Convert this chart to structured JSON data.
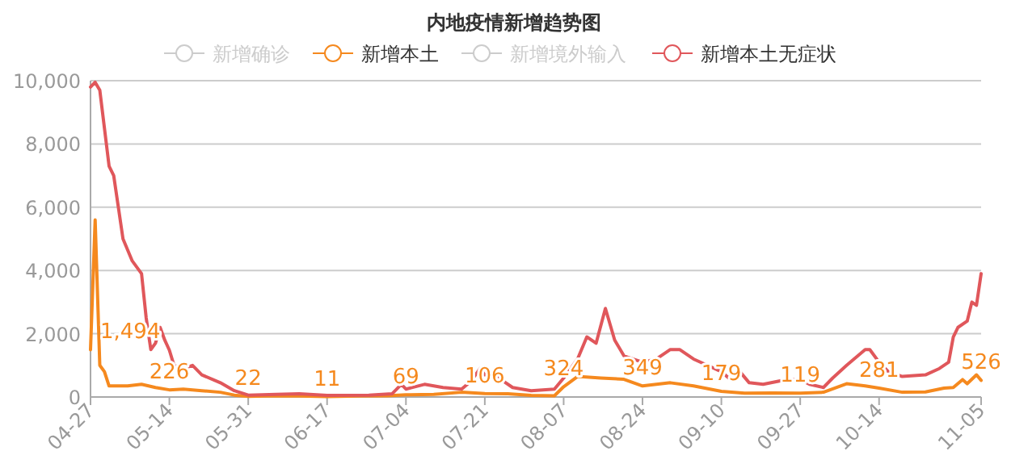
{
  "chart_data": {
    "type": "line",
    "title": "内地疫情新增趋势图",
    "xlim": [
      "--04-27",
      "--11-05"
    ],
    "xticks": [
      {
        "value": "--04-27",
        "label": "04-27"
      },
      {
        "value": "--05-14",
        "label": "05-14"
      },
      {
        "value": "--05-31",
        "label": "05-31"
      },
      {
        "value": "--06-17",
        "label": "06-17"
      },
      {
        "value": "--07-04",
        "label": "07-04"
      },
      {
        "value": "--07-21",
        "label": "07-21"
      },
      {
        "value": "--08-07",
        "label": "08-07"
      },
      {
        "value": "--08-24",
        "label": "08-24"
      },
      {
        "value": "--09-10",
        "label": "09-10"
      },
      {
        "value": "--09-27",
        "label": "09-27"
      },
      {
        "value": "--10-14",
        "label": "10-14"
      },
      {
        "value": "--11-05",
        "label": "11-05"
      }
    ],
    "ylim": [
      0,
      10000
    ],
    "yticks": [
      0,
      {
        "value": 2000,
        "label": "2,000"
      },
      {
        "value": 4000,
        "label": "4,000"
      },
      {
        "value": 6000,
        "label": "6,000"
      },
      {
        "value": 8000,
        "label": "8,000"
      },
      {
        "value": 10000,
        "label": "10,000"
      }
    ],
    "grid": "y",
    "legend": "top",
    "series": [
      {
        "name": "新增确诊",
        "color": "#cccccc"
      },
      {
        "name": "新增本土",
        "color": "#f5891e",
        "x": [
          "--04-27",
          "--04-28",
          "--04-29",
          "--04-30",
          "--05-01",
          "--05-05",
          "--05-08",
          "--05-11",
          "--05-14",
          "--05-17",
          "--05-21",
          "--05-25",
          "--05-28",
          "--05-31",
          "--06-06",
          "--06-11",
          "--06-17",
          "--06-24",
          "--06-30",
          "--07-04",
          "--07-10",
          "--07-16",
          "--07-21",
          "--07-26",
          "--07-31",
          "--08-05",
          "--08-07",
          "--08-10",
          "--08-15",
          "--08-20",
          "--08-24",
          "--08-30",
          "--09-04",
          "--09-10",
          "--09-15",
          "--09-21",
          "--09-27",
          "--10-02",
          "--10-07",
          "--10-11",
          "--10-14",
          "--10-19",
          "--10-24",
          "--10-28",
          "--10-30",
          "--11-01",
          "--11-02",
          "--11-04",
          "--11-05"
        ],
        "values": [
          1494,
          5600,
          1000,
          800,
          350,
          350,
          400,
          300,
          226,
          250,
          200,
          150,
          60,
          22,
          40,
          30,
          11,
          30,
          40,
          69,
          80,
          150,
          106,
          100,
          50,
          40,
          324,
          650,
          600,
          560,
          349,
          450,
          350,
          179,
          120,
          130,
          119,
          150,
          420,
          350,
          281,
          150,
          160,
          280,
          300,
          550,
          420,
          700,
          526
        ],
        "value_labels": [
          "1,494",
          null,
          null,
          null,
          null,
          null,
          null,
          null,
          "226",
          null,
          null,
          null,
          null,
          "22",
          null,
          null,
          "11",
          null,
          null,
          "69",
          null,
          null,
          "106",
          null,
          null,
          null,
          "324",
          null,
          null,
          null,
          "349",
          null,
          null,
          "179",
          null,
          null,
          "119",
          null,
          null,
          null,
          "281",
          null,
          null,
          null,
          null,
          null,
          null,
          null,
          "526"
        ]
      },
      {
        "name": "新增境外输入",
        "color": "#cccccc"
      },
      {
        "name": "新增本土无症状",
        "color": "#e0575b",
        "x": [
          "--04-27",
          "--04-28",
          "--04-29",
          "--04-30",
          "--05-01",
          "--05-02",
          "--05-03",
          "--05-04",
          "--05-06",
          "--05-08",
          "--05-09",
          "--05-10",
          "--05-11",
          "--05-12",
          "--05-13",
          "--05-14",
          "--05-15",
          "--05-17",
          "--05-19",
          "--05-21",
          "--05-25",
          "--05-28",
          "--05-31",
          "--06-06",
          "--06-11",
          "--06-17",
          "--06-26",
          "--07-01",
          "--07-03",
          "--07-04",
          "--07-08",
          "--07-12",
          "--07-16",
          "--07-18",
          "--07-20",
          "--07-21",
          "--07-23",
          "--07-25",
          "--07-27",
          "--07-31",
          "--08-05",
          "--08-07",
          "--08-08",
          "--08-10",
          "--08-12",
          "--08-14",
          "--08-16",
          "--08-18",
          "--08-20",
          "--08-24",
          "--08-27",
          "--08-30",
          "--09-01",
          "--09-04",
          "--09-07",
          "--09-10",
          "--09-12",
          "--09-14",
          "--09-16",
          "--09-19",
          "--09-24",
          "--09-27",
          "--09-29",
          "--10-02",
          "--10-04",
          "--10-07",
          "--10-11",
          "--10-12",
          "--10-14",
          "--10-16",
          "--10-19",
          "--10-24",
          "--10-27",
          "--10-29",
          "--10-30",
          "--10-31",
          "--11-02",
          "--11-03",
          "--11-04",
          "--11-05"
        ],
        "values": [
          9800,
          9950,
          9700,
          8500,
          7300,
          7000,
          6000,
          5000,
          4300,
          3900,
          2500,
          1500,
          1700,
          2200,
          1800,
          1480,
          1000,
          900,
          1000,
          700,
          450,
          200,
          60,
          80,
          100,
          50,
          60,
          100,
          400,
          250,
          400,
          300,
          250,
          500,
          900,
          700,
          800,
          500,
          300,
          200,
          250,
          600,
          800,
          1200,
          1900,
          1700,
          2800,
          1800,
          1300,
          1100,
          1200,
          1500,
          1500,
          1200,
          1000,
          800,
          550,
          800,
          450,
          400,
          550,
          550,
          400,
          300,
          600,
          1000,
          1500,
          1500,
          1100,
          800,
          650,
          700,
          900,
          1100,
          1900,
          2200,
          2400,
          3000,
          2900,
          3900
        ]
      }
    ]
  }
}
